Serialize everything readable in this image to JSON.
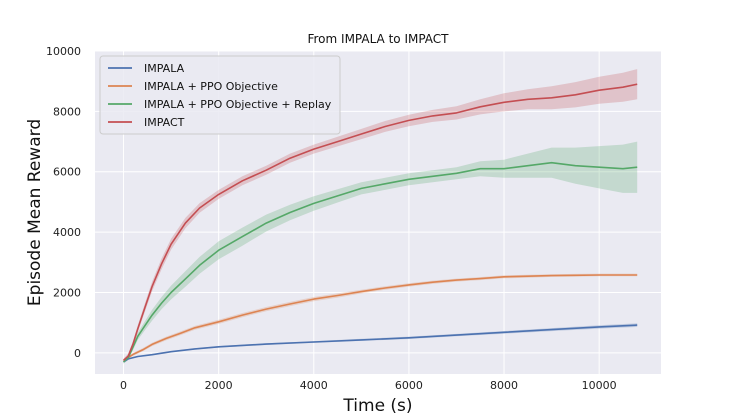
{
  "chart_data": {
    "type": "line",
    "title": "From IMPALA to IMPACT",
    "xlabel": "Time (s)",
    "ylabel": "Episode Mean Reward",
    "xlim": [
      -600,
      11300
    ],
    "ylim": [
      -700,
      10000
    ],
    "xticks": [
      0,
      2000,
      4000,
      6000,
      8000,
      10000
    ],
    "yticks": [
      0,
      2000,
      4000,
      6000,
      8000,
      10000
    ],
    "grid": true,
    "legend_position": "top-left",
    "colors": {
      "background": "#eaeaf2",
      "grid": "#ffffff",
      "IMPALA": "#4c72b0",
      "IMPALA + PPO Objective": "#dd8452",
      "IMPALA + PPO Objective + Replay": "#55a868",
      "IMPACT": "#c44e52"
    },
    "series": [
      {
        "name": "IMPALA",
        "x": [
          0,
          100,
          300,
          600,
          1000,
          1500,
          2000,
          3000,
          4000,
          5000,
          6000,
          7000,
          8000,
          9000,
          10000,
          10800
        ],
        "y": [
          -300,
          -200,
          -120,
          -60,
          40,
          130,
          200,
          290,
          360,
          430,
          500,
          590,
          680,
          770,
          860,
          920
        ],
        "band": [
          20,
          20,
          20,
          20,
          20,
          20,
          25,
          30,
          30,
          35,
          40,
          40,
          45,
          50,
          55,
          60
        ]
      },
      {
        "name": "IMPALA + PPO Objective",
        "x": [
          0,
          100,
          200,
          400,
          600,
          900,
          1200,
          1500,
          2000,
          2500,
          3000,
          3500,
          4000,
          4500,
          5000,
          5500,
          6000,
          6500,
          7000,
          7500,
          8000,
          8500,
          9000,
          9500,
          10000,
          10500,
          10800
        ],
        "y": [
          -250,
          -150,
          -50,
          100,
          280,
          480,
          650,
          830,
          1030,
          1250,
          1450,
          1620,
          1780,
          1900,
          2030,
          2150,
          2250,
          2340,
          2410,
          2460,
          2520,
          2540,
          2560,
          2570,
          2580,
          2580,
          2580
        ],
        "band": [
          40,
          40,
          45,
          50,
          55,
          60,
          60,
          65,
          70,
          70,
          70,
          70,
          70,
          70,
          60,
          60,
          55,
          55,
          50,
          50,
          50,
          50,
          45,
          45,
          45,
          45,
          45
        ]
      },
      {
        "name": "IMPALA + PPO Objective + Replay",
        "x": [
          0,
          100,
          200,
          300,
          450,
          600,
          800,
          1000,
          1300,
          1600,
          2000,
          2500,
          3000,
          3500,
          4000,
          4500,
          5000,
          5500,
          6000,
          6500,
          7000,
          7500,
          8000,
          8500,
          9000,
          9500,
          10000,
          10500,
          10800
        ],
        "y": [
          -300,
          -150,
          200,
          550,
          900,
          1250,
          1650,
          2000,
          2450,
          2900,
          3400,
          3850,
          4300,
          4650,
          4950,
          5200,
          5450,
          5600,
          5750,
          5850,
          5950,
          6100,
          6100,
          6200,
          6300,
          6200,
          6150,
          6100,
          6150
        ],
        "band": [
          60,
          80,
          100,
          120,
          150,
          180,
          200,
          230,
          260,
          280,
          300,
          300,
          280,
          260,
          240,
          220,
          200,
          200,
          200,
          200,
          200,
          250,
          300,
          400,
          500,
          600,
          700,
          800,
          850
        ]
      },
      {
        "name": "IMPACT",
        "x": [
          0,
          100,
          200,
          300,
          450,
          600,
          800,
          1000,
          1300,
          1600,
          2000,
          2500,
          3000,
          3500,
          4000,
          4500,
          5000,
          5500,
          6000,
          6500,
          7000,
          7500,
          8000,
          8500,
          9000,
          9500,
          10000,
          10500,
          10800
        ],
        "y": [
          -250,
          -100,
          300,
          800,
          1500,
          2200,
          2950,
          3600,
          4300,
          4800,
          5250,
          5700,
          6050,
          6450,
          6750,
          7000,
          7250,
          7500,
          7700,
          7850,
          7950,
          8150,
          8300,
          8400,
          8450,
          8550,
          8700,
          8800,
          8900
        ],
        "band": [
          60,
          80,
          100,
          120,
          140,
          160,
          180,
          180,
          170,
          160,
          150,
          150,
          150,
          150,
          150,
          160,
          170,
          180,
          190,
          200,
          220,
          250,
          300,
          330,
          380,
          420,
          450,
          480,
          500
        ]
      }
    ]
  }
}
